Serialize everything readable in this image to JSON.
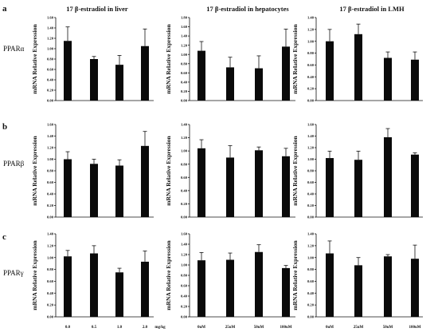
{
  "column_titles": [
    "17 β-estradiol in liver",
    "17 β-estradiol in hepatocytes",
    "17 β-estradiol in LMH"
  ],
  "row_labels": [
    {
      "letter": "a",
      "gene": "PPARα"
    },
    {
      "letter": "b",
      "gene": "PPARβ"
    },
    {
      "letter": "c",
      "gene": "PPARγ"
    }
  ],
  "chart_data": [
    {
      "type": "bar",
      "panel": "PPARα liver",
      "ylabel": "mRNA Relative Expression",
      "ylim": [
        0,
        1.6
      ],
      "ytick_step": 0.2,
      "categories": [
        "0.0",
        "0.5",
        "1.0",
        "2.0"
      ],
      "values": [
        1.15,
        0.8,
        0.69,
        1.05
      ],
      "errors": [
        0.27,
        0.05,
        0.18,
        0.33
      ]
    },
    {
      "type": "bar",
      "panel": "PPARα hepatocytes",
      "ylabel": "mRNA Relative Expression",
      "ylim": [
        0,
        1.8
      ],
      "ytick_step": 0.2,
      "categories": [
        "0uM",
        "25uM",
        "50uM",
        "100uM"
      ],
      "values": [
        1.08,
        0.72,
        0.7,
        1.17
      ],
      "errors": [
        0.2,
        0.22,
        0.27,
        0.38
      ]
    },
    {
      "type": "bar",
      "panel": "PPARα LMH",
      "ylabel": "mRNA Relative Expression",
      "ylim": [
        0,
        1.4
      ],
      "ytick_step": 0.2,
      "categories": [
        "0uM",
        "25uM",
        "50uM",
        "100uM"
      ],
      "values": [
        1.0,
        1.12,
        0.72,
        0.69
      ],
      "errors": [
        0.2,
        0.17,
        0.1,
        0.13
      ]
    },
    {
      "type": "bar",
      "panel": "PPARβ liver",
      "ylabel": "mRNA Relative Expression",
      "ylim": [
        0,
        1.6
      ],
      "ytick_step": 0.2,
      "categories": [
        "0.0",
        "0.5",
        "1.0",
        "2.0"
      ],
      "values": [
        1.0,
        0.92,
        0.89,
        1.23
      ],
      "errors": [
        0.13,
        0.08,
        0.1,
        0.25
      ]
    },
    {
      "type": "bar",
      "panel": "PPARβ hepatocytes",
      "ylabel": "mRNA Relative Expression",
      "ylim": [
        0,
        1.4
      ],
      "ytick_step": 0.2,
      "categories": [
        "0uM",
        "25uM",
        "50uM",
        "100uM"
      ],
      "values": [
        1.04,
        0.9,
        1.01,
        0.92
      ],
      "errors": [
        0.13,
        0.18,
        0.05,
        0.12
      ]
    },
    {
      "type": "bar",
      "panel": "PPARβ LMH",
      "ylabel": "mRNA Relative Expression",
      "ylim": [
        0,
        1.6
      ],
      "ytick_step": 0.2,
      "categories": [
        "0uM",
        "25uM",
        "50uM",
        "100uM"
      ],
      "values": [
        1.02,
        0.99,
        1.38,
        1.08
      ],
      "errors": [
        0.12,
        0.15,
        0.15,
        0.03
      ]
    },
    {
      "type": "bar",
      "panel": "PPARγ liver",
      "ylabel": "mRNA Relative Expression",
      "ylim": [
        0,
        1.4
      ],
      "ytick_step": 0.2,
      "categories": [
        "0.0",
        "0.5",
        "1.0",
        "2.0"
      ],
      "values": [
        1.02,
        1.07,
        0.75,
        0.93
      ],
      "errors": [
        0.1,
        0.13,
        0.07,
        0.18
      ]
    },
    {
      "type": "bar",
      "panel": "PPARγ hepatocytes",
      "ylabel": "mRNA Relative Expression",
      "ylim": [
        0,
        1.6
      ],
      "ytick_step": 0.2,
      "categories": [
        "0uM",
        "25uM",
        "50uM",
        "100uM"
      ],
      "values": [
        1.09,
        1.1,
        1.25,
        0.94
      ],
      "errors": [
        0.15,
        0.13,
        0.14,
        0.05
      ]
    },
    {
      "type": "bar",
      "panel": "PPARγ LMH",
      "ylabel": "mRNA Relative Expression",
      "ylim": [
        0,
        1.4
      ],
      "ytick_step": 0.2,
      "categories": [
        "0uM",
        "25uM",
        "50uM",
        "100uM"
      ],
      "values": [
        1.07,
        0.87,
        1.02,
        0.98
      ],
      "errors": [
        0.21,
        0.13,
        0.03,
        0.23
      ]
    }
  ],
  "x_unit": "mg/kg"
}
